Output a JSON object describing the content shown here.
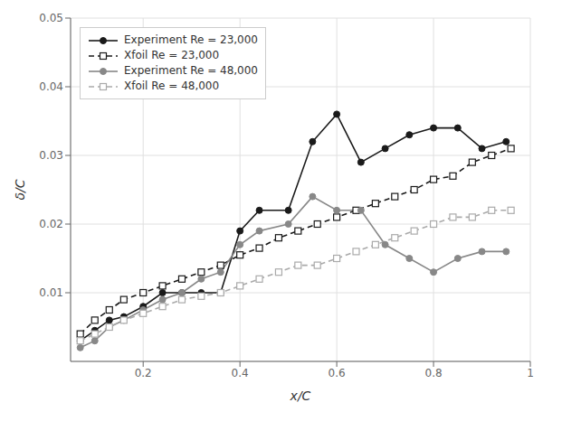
{
  "chart_data": {
    "type": "line",
    "xlabel": "x/C",
    "ylabel": "δ/C",
    "xlim": [
      0.05,
      1.0
    ],
    "ylim": [
      0.0,
      0.05
    ],
    "xticks": [
      0.2,
      0.4,
      0.6,
      0.8,
      1
    ],
    "yticks": [
      0.01,
      0.02,
      0.03,
      0.04,
      0.05
    ],
    "grid": true,
    "legend": "upper left",
    "series": [
      {
        "name": "Experiment Re = 23,000",
        "color": "#1a1a1a",
        "marker": "circle",
        "line_style": "solid",
        "x": [
          0.07,
          0.1,
          0.13,
          0.16,
          0.2,
          0.24,
          0.28,
          0.32,
          0.36,
          0.4,
          0.44,
          0.5,
          0.55,
          0.6,
          0.65,
          0.7,
          0.75,
          0.8,
          0.85,
          0.9,
          0.95
        ],
        "values": [
          0.003,
          0.0045,
          0.006,
          0.0065,
          0.008,
          0.01,
          0.01,
          0.01,
          0.01,
          0.019,
          0.022,
          0.022,
          0.032,
          0.036,
          0.029,
          0.031,
          0.033,
          0.034,
          0.034,
          0.031,
          0.032
        ]
      },
      {
        "name": "Xfoil Re = 23,000",
        "color": "#1a1a1a",
        "marker": "square",
        "line_style": "dashed",
        "x": [
          0.07,
          0.1,
          0.13,
          0.16,
          0.2,
          0.24,
          0.28,
          0.32,
          0.36,
          0.4,
          0.44,
          0.48,
          0.52,
          0.56,
          0.6,
          0.64,
          0.68,
          0.72,
          0.76,
          0.8,
          0.84,
          0.88,
          0.92,
          0.96
        ],
        "values": [
          0.004,
          0.006,
          0.0075,
          0.009,
          0.01,
          0.011,
          0.012,
          0.013,
          0.014,
          0.0155,
          0.0165,
          0.018,
          0.019,
          0.02,
          0.021,
          0.022,
          0.023,
          0.024,
          0.025,
          0.0265,
          0.027,
          0.029,
          0.03,
          0.031
        ]
      },
      {
        "name": "Experiment Re = 48,000",
        "color": "#888888",
        "marker": "circle",
        "line_style": "solid",
        "x": [
          0.07,
          0.1,
          0.13,
          0.16,
          0.2,
          0.24,
          0.28,
          0.32,
          0.36,
          0.4,
          0.44,
          0.5,
          0.55,
          0.6,
          0.65,
          0.7,
          0.75,
          0.8,
          0.85,
          0.9,
          0.95
        ],
        "values": [
          0.002,
          0.003,
          0.005,
          0.006,
          0.0075,
          0.009,
          0.01,
          0.012,
          0.013,
          0.017,
          0.019,
          0.02,
          0.024,
          0.022,
          0.022,
          0.017,
          0.015,
          0.013,
          0.015,
          0.016,
          0.016
        ]
      },
      {
        "name": "Xfoil Re = 48,000",
        "color": "#aaaaaa",
        "marker": "square",
        "line_style": "dashed",
        "x": [
          0.07,
          0.1,
          0.13,
          0.16,
          0.2,
          0.24,
          0.28,
          0.32,
          0.36,
          0.4,
          0.44,
          0.48,
          0.52,
          0.56,
          0.6,
          0.64,
          0.68,
          0.72,
          0.76,
          0.8,
          0.84,
          0.88,
          0.92,
          0.96
        ],
        "values": [
          0.003,
          0.004,
          0.005,
          0.006,
          0.007,
          0.008,
          0.009,
          0.0095,
          0.01,
          0.011,
          0.012,
          0.013,
          0.014,
          0.014,
          0.015,
          0.016,
          0.017,
          0.018,
          0.019,
          0.02,
          0.021,
          0.021,
          0.022,
          0.022
        ]
      }
    ]
  }
}
